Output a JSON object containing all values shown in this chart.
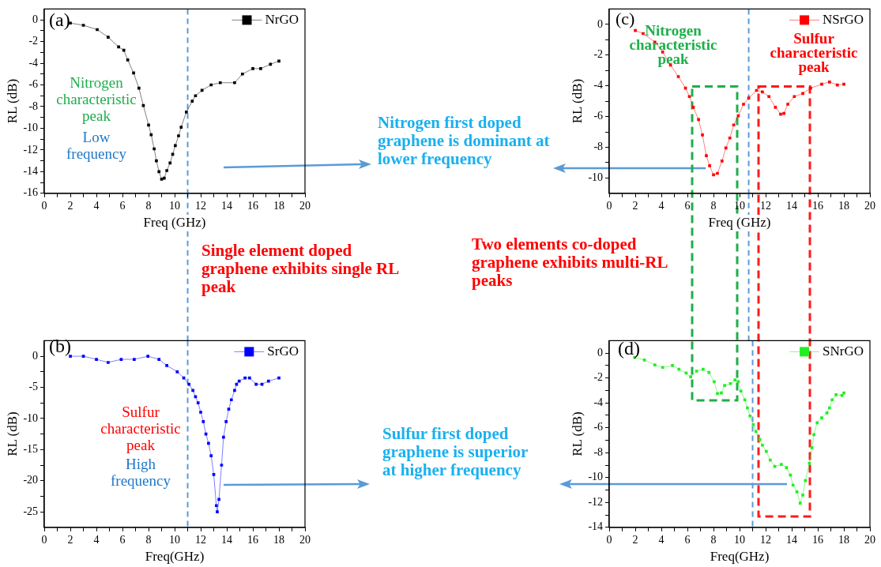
{
  "chart_data": [
    {
      "type": "line",
      "xlabel": "Freq (GHz)",
      "ylabel": "RL (dB)",
      "marker": "square",
      "legend": "top right",
      "xlim": [
        0,
        20
      ],
      "ylim": [
        -16,
        1
      ],
      "xticks": [
        0,
        {
          "value": 1,
          "label": null
        },
        2,
        {
          "value": 3,
          "label": null
        },
        4,
        {
          "value": 5,
          "label": null
        },
        6,
        {
          "value": 7,
          "label": null
        },
        8,
        {
          "value": 9,
          "label": null
        },
        10,
        {
          "value": 11,
          "label": null
        },
        12,
        {
          "value": 13,
          "label": null
        },
        14,
        {
          "value": 15,
          "label": null
        },
        16,
        {
          "value": 17,
          "label": null
        },
        18,
        {
          "value": 19,
          "label": null
        },
        20
      ],
      "yticks": [
        0,
        {
          "value": -1,
          "label": null
        },
        -2,
        {
          "value": -3,
          "label": null
        },
        -4,
        {
          "value": -5,
          "label": null
        },
        -6,
        {
          "value": -7,
          "label": null
        },
        -8,
        {
          "value": -9,
          "label": null
        },
        -10,
        {
          "value": -11,
          "label": null
        },
        -12,
        {
          "value": -13,
          "label": null
        },
        -14,
        {
          "value": -15,
          "label": null
        },
        -16
      ],
      "x": [
        2.0,
        3.0,
        4.06,
        4.9,
        5.7,
        6.1,
        6.4,
        6.85,
        7.26,
        7.6,
        8.0,
        8.2,
        8.43,
        8.6,
        8.8,
        9.0,
        9.2,
        9.4,
        9.65,
        9.85,
        10.05,
        10.3,
        10.5,
        10.9,
        11.35,
        11.6,
        12.1,
        12.8,
        13.5,
        14.6,
        15.2,
        16.0,
        16.6,
        17.35,
        18.0
      ],
      "series": [
        {
          "name": "NrGO",
          "color": "#000000",
          "values": [
            -0.3,
            -0.5,
            -0.9,
            -1.6,
            -2.5,
            -2.8,
            -3.7,
            -4.9,
            -6.3,
            -7.9,
            -9.7,
            -10.6,
            -11.9,
            -13.0,
            -14.0,
            -14.7,
            -14.6,
            -13.9,
            -13.2,
            -12.4,
            -11.6,
            -10.7,
            -9.9,
            -8.5,
            -7.5,
            -7.0,
            -6.5,
            -6.0,
            -5.8,
            -5.8,
            -5.0,
            -4.5,
            -4.5,
            -4.1,
            -3.8
          ]
        }
      ],
      "ref_lines": [
        {
          "axis": "x",
          "value": 11,
          "color": "#5b9bd5",
          "line_style": "dashed"
        }
      ],
      "annotations": [
        "(a)",
        "Nitrogen characteristic peak",
        "Low frequency",
        "Nitrogen first doped graphene is dominant at lower frequency",
        "Single element doped graphene exhibits single RL peak"
      ]
    },
    {
      "type": "line",
      "xlabel": "Freq (GHz)",
      "ylabel": "RL (dB)",
      "marker": "square",
      "legend": "top right",
      "xlim": [
        0,
        20
      ],
      "ylim": [
        -11,
        1
      ],
      "xticks": [
        0,
        {
          "value": 1,
          "label": null
        },
        2,
        {
          "value": 3,
          "label": null
        },
        4,
        {
          "value": 5,
          "label": null
        },
        6,
        {
          "value": 7,
          "label": null
        },
        8,
        {
          "value": 9,
          "label": null
        },
        10,
        {
          "value": 11,
          "label": null
        },
        12,
        {
          "value": 13,
          "label": null
        },
        14,
        {
          "value": 15,
          "label": null
        },
        16,
        {
          "value": 17,
          "label": null
        },
        18,
        {
          "value": 19,
          "label": null
        },
        20
      ],
      "yticks": [
        0,
        {
          "value": -1,
          "label": null
        },
        -2,
        {
          "value": -3,
          "label": null
        },
        -4,
        {
          "value": -5,
          "label": null
        },
        -6,
        {
          "value": -7,
          "label": null
        },
        -8,
        {
          "value": -9,
          "label": null
        },
        -10
      ],
      "x": [
        2.0,
        2.6,
        3.5,
        4.1,
        4.7,
        5.3,
        5.85,
        6.15,
        6.45,
        6.85,
        7.15,
        7.45,
        7.7,
        8.0,
        8.3,
        8.65,
        8.95,
        9.25,
        9.55,
        9.9,
        10.3,
        10.7,
        11.3,
        11.75,
        12.25,
        12.75,
        13.15,
        13.4,
        13.7,
        14.2,
        14.85,
        15.45,
        16.3,
        16.9,
        17.5,
        18.0
      ],
      "series": [
        {
          "name": "NSrGO",
          "color": "#ff0000",
          "values": [
            -0.4,
            -0.6,
            -1.15,
            -1.8,
            -2.65,
            -3.4,
            -4.15,
            -4.7,
            -5.4,
            -6.2,
            -7.2,
            -8.55,
            -9.2,
            -9.8,
            -9.7,
            -8.9,
            -8.05,
            -7.4,
            -6.55,
            -5.95,
            -5.2,
            -4.8,
            -4.3,
            -4.4,
            -4.7,
            -5.4,
            -5.85,
            -5.8,
            -5.2,
            -4.7,
            -4.5,
            -4.15,
            -3.9,
            -3.75,
            -3.95,
            -3.9
          ]
        }
      ],
      "ref_lines": [
        {
          "axis": "x",
          "value": 10.7,
          "color": "#5b9bd5",
          "line_style": "dashed"
        }
      ],
      "annotations": [
        "(c)",
        "Nitrogen characteristic peak",
        "Sulfur characteristic peak",
        "Two elements co-doped graphene exhibits multi-RL peaks"
      ]
    },
    {
      "type": "line",
      "xlabel": "Freq(GHz)",
      "ylabel": "RL (dB)",
      "marker": "square",
      "legend": "top right",
      "xlim": [
        0,
        20
      ],
      "ylim": [
        -27.5,
        2.5
      ],
      "xticks": [
        0,
        {
          "value": 1,
          "label": null
        },
        2,
        {
          "value": 3,
          "label": null
        },
        4,
        {
          "value": 5,
          "label": null
        },
        6,
        {
          "value": 7,
          "label": null
        },
        8,
        {
          "value": 9,
          "label": null
        },
        10,
        {
          "value": 11,
          "label": null
        },
        12,
        {
          "value": 13,
          "label": null
        },
        14,
        {
          "value": 15,
          "label": null
        },
        16,
        {
          "value": 17,
          "label": null
        },
        18,
        {
          "value": 19,
          "label": null
        },
        20
      ],
      "yticks": [
        0,
        {
          "value": -2.5,
          "label": null
        },
        -5,
        {
          "value": -7.5,
          "label": null
        },
        -10,
        {
          "value": -12.5,
          "label": null
        },
        -15,
        {
          "value": -17.5,
          "label": null
        },
        -20,
        {
          "value": -22.5,
          "label": null
        },
        -25
      ],
      "x": [
        2.0,
        3.0,
        4.0,
        4.9,
        5.9,
        6.9,
        7.95,
        8.8,
        9.4,
        10.2,
        10.7,
        11.1,
        11.4,
        11.6,
        11.8,
        12.0,
        12.2,
        12.4,
        12.6,
        12.8,
        13.0,
        13.2,
        13.27,
        13.4,
        13.6,
        13.75,
        13.95,
        14.15,
        14.35,
        14.6,
        14.75,
        14.95,
        15.4,
        15.75,
        16.25,
        16.7,
        17.2,
        18.0
      ],
      "series": [
        {
          "name": "SrGO",
          "color": "#0000ff",
          "values": [
            0,
            0,
            -0.5,
            -1,
            -0.5,
            -0.5,
            0,
            -0.5,
            -1.5,
            -2.5,
            -3.5,
            -4.5,
            -5.5,
            -6.5,
            -7.5,
            -9,
            -10.5,
            -12.5,
            -14,
            -16,
            -19,
            -24,
            -25,
            -23,
            -17.5,
            -13,
            -10.5,
            -8.5,
            -7,
            -5.5,
            -4.5,
            -4,
            -3.5,
            -3.5,
            -4.5,
            -4.5,
            -4,
            -3.5
          ]
        }
      ],
      "ref_lines": [
        {
          "axis": "x",
          "value": 11,
          "color": "#5b9bd5",
          "line_style": "dashed"
        }
      ],
      "annotations": [
        "(b)",
        "Sulfur characteristic peak",
        "High frequency",
        "Sulfur first doped graphene is superior at higher frequency"
      ]
    },
    {
      "type": "line",
      "xlabel": "Freq(GHz)",
      "ylabel": "RL (dB)",
      "marker": "square",
      "legend": "top right",
      "xlim": [
        0,
        20
      ],
      "ylim": [
        -14,
        1
      ],
      "xticks": [
        0,
        {
          "value": 1,
          "label": null
        },
        2,
        {
          "value": 3,
          "label": null
        },
        4,
        {
          "value": 5,
          "label": null
        },
        6,
        {
          "value": 7,
          "label": null
        },
        8,
        {
          "value": 9,
          "label": null
        },
        10,
        {
          "value": 11,
          "label": null
        },
        12,
        {
          "value": 13,
          "label": null
        },
        14,
        {
          "value": 15,
          "label": null
        },
        16,
        {
          "value": 17,
          "label": null
        },
        18,
        {
          "value": 19,
          "label": null
        },
        20
      ],
      "yticks": [
        0,
        {
          "value": -1,
          "label": null
        },
        -2,
        {
          "value": -3,
          "label": null
        },
        -4,
        {
          "value": -5,
          "label": null
        },
        -6,
        {
          "value": -7,
          "label": null
        },
        -8,
        {
          "value": -9,
          "label": null
        },
        -10,
        {
          "value": -11,
          "label": null
        },
        -12,
        {
          "value": -13,
          "label": null
        },
        -14
      ],
      "x": [
        1.95,
        2.7,
        3.5,
        4.1,
        4.85,
        5.35,
        5.9,
        6.25,
        6.7,
        7.2,
        7.65,
        8.05,
        8.3,
        8.6,
        8.85,
        9.3,
        9.65,
        9.9,
        10.1,
        10.4,
        10.6,
        10.8,
        11.05,
        11.25,
        11.55,
        11.75,
        12.05,
        12.35,
        12.7,
        13.2,
        13.6,
        13.9,
        14.1,
        14.4,
        14.65,
        14.85,
        15.05,
        15.35,
        15.55,
        15.7,
        15.95,
        16.3,
        16.7,
        16.9,
        17.1,
        17.4,
        17.85,
        18.0
      ],
      "series": [
        {
          "name": "SNrGO",
          "color": "#22ee22",
          "values": [
            -0.35,
            -0.55,
            -0.95,
            -1.15,
            -1.0,
            -1.3,
            -1.6,
            -1.9,
            -1.45,
            -1.3,
            -1.55,
            -2.3,
            -3.25,
            -3.2,
            -2.6,
            -2.45,
            -2.15,
            -2.3,
            -3.05,
            -3.75,
            -4.4,
            -5.05,
            -5.75,
            -6.3,
            -6.95,
            -7.4,
            -7.9,
            -8.6,
            -9.1,
            -8.95,
            -9.2,
            -9.8,
            -10.6,
            -11.15,
            -12.05,
            -11.4,
            -10.25,
            -8.85,
            -7.6,
            -6.55,
            -5.6,
            -5.2,
            -4.8,
            -4.4,
            -3.75,
            -3.35,
            -3.4,
            -3.2
          ]
        }
      ],
      "ref_lines": [
        {
          "axis": "x",
          "value": 11,
          "color": "#5b9bd5",
          "line_style": "dashed"
        }
      ],
      "annotations": [
        "(d)"
      ]
    }
  ]
}
